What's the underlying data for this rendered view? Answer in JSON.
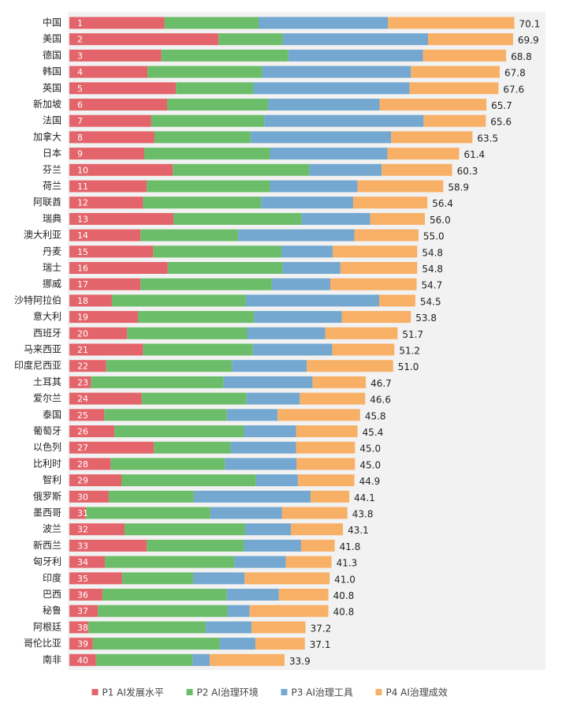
{
  "chart_data": {
    "type": "stacked-bar-horizontal",
    "categories": [
      "中国",
      "美国",
      "德国",
      "韩国",
      "英国",
      "新加坡",
      "法国",
      "加拿大",
      "日本",
      "芬兰",
      "荷兰",
      "阿联酋",
      "瑞典",
      "澳大利亚",
      "丹麦",
      "瑞士",
      "挪威",
      "沙特阿拉伯",
      "意大利",
      "西班牙",
      "马来西亚",
      "印度尼西亚",
      "土耳其",
      "爱尔兰",
      "泰国",
      "葡萄牙",
      "以色列",
      "比利时",
      "智利",
      "俄罗斯",
      "墨西哥",
      "波兰",
      "新西兰",
      "匈牙利",
      "印度",
      "巴西",
      "秘鲁",
      "阿根廷",
      "哥伦比亚",
      "南非"
    ],
    "ranks": [
      1,
      2,
      3,
      4,
      5,
      6,
      7,
      8,
      9,
      10,
      11,
      12,
      13,
      14,
      15,
      16,
      17,
      18,
      19,
      20,
      21,
      22,
      23,
      24,
      25,
      26,
      27,
      28,
      29,
      30,
      31,
      32,
      33,
      34,
      35,
      36,
      37,
      38,
      39,
      40
    ],
    "totals": [
      70.1,
      69.9,
      68.8,
      67.8,
      67.6,
      65.7,
      65.6,
      63.5,
      61.4,
      60.3,
      58.9,
      56.4,
      56.0,
      55.0,
      54.8,
      54.8,
      54.7,
      54.5,
      53.8,
      51.7,
      51.2,
      51.0,
      46.7,
      46.6,
      45.8,
      45.4,
      45.0,
      45.0,
      44.9,
      44.1,
      43.8,
      43.1,
      41.8,
      41.3,
      41.0,
      40.8,
      40.8,
      37.2,
      37.1,
      33.9
    ],
    "total_labels": [
      "70.1",
      "69.9",
      "68.8",
      "67.8",
      "67.6",
      "65.7",
      "65.6",
      "63.5",
      "61.4",
      "60.3",
      "58.9",
      "56.4",
      "56.0",
      "55.0",
      "54.8",
      "54.8",
      "54.7",
      "54.5",
      "53.8",
      "51.7",
      "51.2",
      "51.0",
      "46.7",
      "46.6",
      "45.8",
      "45.4",
      "45.0",
      "45.0",
      "44.9",
      "44.1",
      "43.8",
      "43.1",
      "41.8",
      "41.3",
      "41.0",
      "40.8",
      "40.8",
      "37.2",
      "37.1",
      "33.9"
    ],
    "series": [
      {
        "name": "P1 AI发展水平",
        "color": "#e3646b",
        "values": [
          15.0,
          23.5,
          14.5,
          12.3,
          16.8,
          15.4,
          12.9,
          13.4,
          11.8,
          16.3,
          12.2,
          11.6,
          16.4,
          11.2,
          13.2,
          15.5,
          11.2,
          6.7,
          10.8,
          9.1,
          11.6,
          5.8,
          3.4,
          11.4,
          5.5,
          7.1,
          13.3,
          6.5,
          8.2,
          6.2,
          2.6,
          8.7,
          12.2,
          5.6,
          8.3,
          5.2,
          4.5,
          3.0,
          3.7,
          4.2
        ]
      },
      {
        "name": "P2 AI治理环境",
        "color": "#6cbd6a",
        "values": [
          14.8,
          10.1,
          20.0,
          18.1,
          12.2,
          15.9,
          17.8,
          15.2,
          19.8,
          21.5,
          19.4,
          18.6,
          20.2,
          15.4,
          20.2,
          18.1,
          20.7,
          21.1,
          18.3,
          18.9,
          17.3,
          19.8,
          20.9,
          16.5,
          19.3,
          20.4,
          12.1,
          18.0,
          21.2,
          13.4,
          19.6,
          19.0,
          15.3,
          20.4,
          11.2,
          19.6,
          20.4,
          18.5,
          20.0,
          15.2
        ]
      },
      {
        "name": "P3 AI治理工具",
        "color": "#74a8d0",
        "values": [
          20.4,
          22.9,
          21.2,
          23.4,
          24.6,
          17.6,
          25.1,
          22.1,
          18.5,
          11.4,
          13.8,
          14.5,
          10.8,
          18.3,
          8.1,
          9.1,
          9.2,
          21.0,
          13.8,
          12.3,
          12.5,
          11.8,
          14.0,
          8.4,
          8.0,
          8.2,
          10.3,
          11.3,
          6.6,
          18.4,
          11.3,
          7.2,
          9.0,
          8.1,
          8.1,
          8.2,
          3.5,
          7.2,
          5.6,
          2.7
        ]
      },
      {
        "name": "P4 AI治理成效",
        "color": "#f8b066",
        "values": [
          19.9,
          13.4,
          13.1,
          14.0,
          14.0,
          16.8,
          9.8,
          12.8,
          11.3,
          11.1,
          13.5,
          11.7,
          8.6,
          10.1,
          13.3,
          12.1,
          13.6,
          5.7,
          10.9,
          11.4,
          9.8,
          13.6,
          8.4,
          10.3,
          13.0,
          9.7,
          9.3,
          9.2,
          8.9,
          6.1,
          10.3,
          8.2,
          5.3,
          7.2,
          13.4,
          7.8,
          12.4,
          8.5,
          7.8,
          11.8
        ]
      }
    ],
    "xlim": [
      0,
      75
    ]
  }
}
